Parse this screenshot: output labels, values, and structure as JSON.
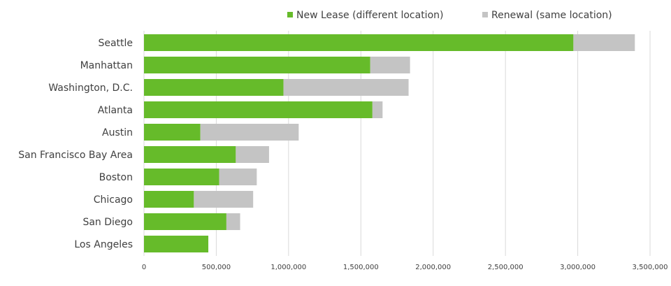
{
  "chart_data": {
    "type": "bar",
    "orientation": "horizontal",
    "stacked": true,
    "categories": [
      "Seattle",
      "Manhattan",
      "Washington, D.C.",
      "Atlanta",
      "Austin",
      "San Francisco Bay Area",
      "Boston",
      "Chicago",
      "San Diego",
      "Los Angeles"
    ],
    "series": [
      {
        "name": "New Lease (different location)",
        "color": "#66bb2a",
        "values": [
          2970000,
          1565000,
          965000,
          1580000,
          390000,
          635000,
          520000,
          345000,
          570000,
          445000
        ]
      },
      {
        "name": "Renewal (same location)",
        "color": "#c4c4c4",
        "values": [
          425000,
          275000,
          865000,
          70000,
          680000,
          230000,
          260000,
          410000,
          95000,
          0
        ]
      }
    ],
    "xlim": [
      0,
      3500000
    ],
    "xticks": [
      0,
      500000,
      1000000,
      1500000,
      2000000,
      2500000,
      3000000,
      3500000
    ],
    "xtick_labels": [
      "0",
      "500,000",
      "1,000,000",
      "1,500,000",
      "2,000,000",
      "2,500,000",
      "3,000,000",
      "3,500,000"
    ],
    "grid": "vertical",
    "legend": "top-right"
  }
}
